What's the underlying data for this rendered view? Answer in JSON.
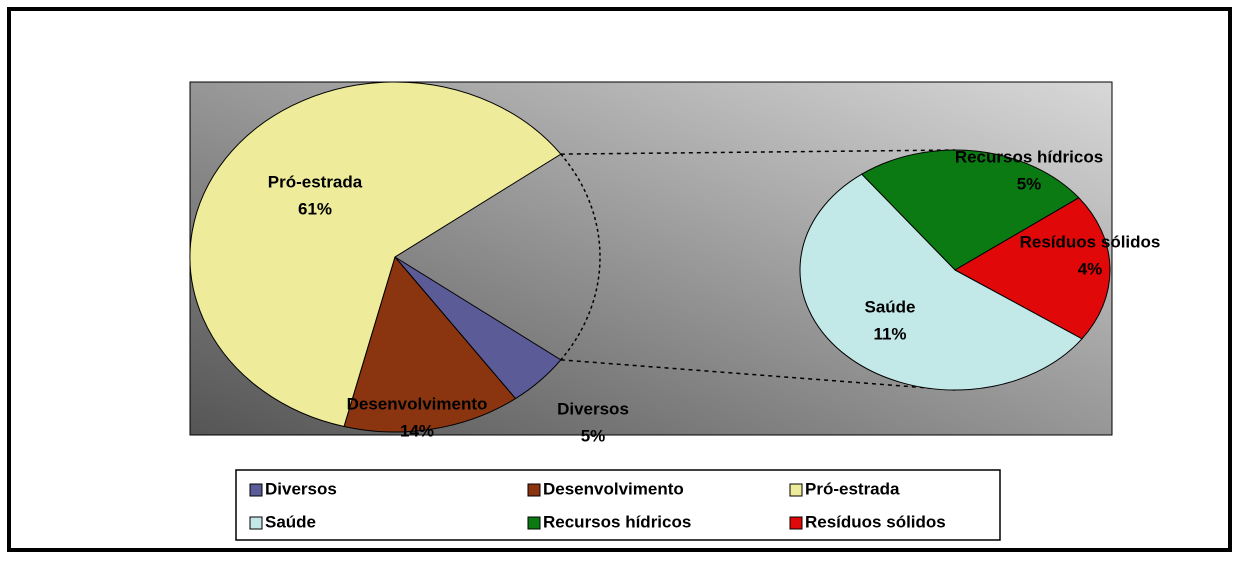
{
  "chart_data": {
    "type": "pie-of-pie",
    "categories": [
      "Diversos",
      "Desenvolvimento",
      "Pró-estrada",
      "Saúde",
      "Recursos hídricos",
      "Resíduos sólidos"
    ],
    "values": [
      5,
      14,
      61,
      11,
      5,
      4
    ],
    "value_labels": [
      "5%",
      "14%",
      "61%",
      "11%",
      "5%",
      "4%"
    ],
    "colors": [
      "#5b5b98",
      "#8a3510",
      "#eeeb9a",
      "#c3e8e8",
      "#0c7a12",
      "#e00808"
    ],
    "legend": "bottom"
  }
}
